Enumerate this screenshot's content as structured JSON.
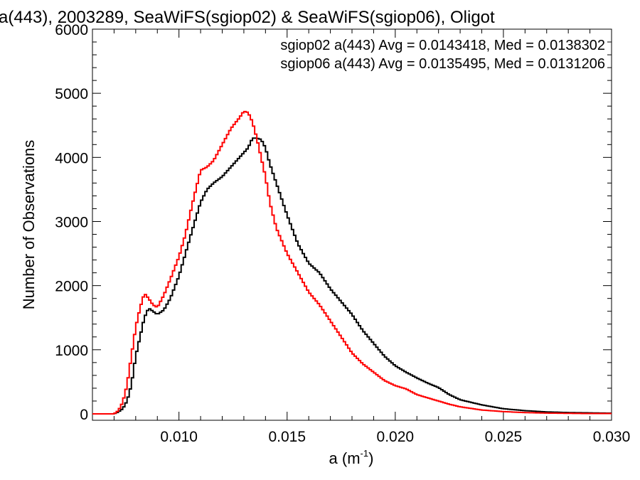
{
  "chart_data": {
    "type": "line",
    "title": "a(443), 2003289, SeaWiFS(sgiop02) & SeaWiFS(sgiop06), Oligot",
    "xlabel": "a (m",
    "xlabel_sup": "-1",
    "xlabel_close": ")",
    "ylabel": "Number of Observations",
    "xlim": [
      0.006,
      0.03
    ],
    "ylim": [
      -100,
      6000
    ],
    "x_ticks": [
      0.01,
      0.015,
      0.02,
      0.025,
      0.03
    ],
    "x_tick_labels": [
      "0.010",
      "0.015",
      "0.020",
      "0.025",
      "0.030"
    ],
    "y_ticks": [
      0,
      1000,
      2000,
      3000,
      4000,
      5000,
      6000
    ],
    "y_tick_labels": [
      "0",
      "1000",
      "2000",
      "3000",
      "4000",
      "5000",
      "6000"
    ],
    "grid": false,
    "legend_position": "top-right",
    "annotations": [
      {
        "text": "sgiop02 a(443) Avg = 0.0143418, Med = 0.0138302",
        "color": "#000000"
      },
      {
        "text": "sgiop06 a(443) Avg = 0.0135495, Med = 0.0131206",
        "color": "#ff0000"
      }
    ],
    "series": [
      {
        "color": "#000000",
        "x": [
          0.006,
          0.007,
          0.0072,
          0.0074,
          0.0076,
          0.0078,
          0.008,
          0.0082,
          0.0084,
          0.0086,
          0.0088,
          0.009,
          0.0093,
          0.0096,
          0.01,
          0.0103,
          0.0106,
          0.011,
          0.0113,
          0.0116,
          0.012,
          0.0124,
          0.0128,
          0.0132,
          0.0134,
          0.0136,
          0.0138,
          0.014,
          0.0142,
          0.0145,
          0.015,
          0.0155,
          0.016,
          0.0165,
          0.017,
          0.0175,
          0.018,
          0.0185,
          0.019,
          0.0195,
          0.02,
          0.0205,
          0.021,
          0.0215,
          0.022,
          0.0225,
          0.023,
          0.024,
          0.025,
          0.026,
          0.027,
          0.028,
          0.029,
          0.03
        ],
        "values": [
          0,
          0,
          30,
          80,
          200,
          450,
          900,
          1200,
          1500,
          1650,
          1600,
          1550,
          1620,
          1800,
          2150,
          2500,
          2850,
          3300,
          3500,
          3600,
          3700,
          3850,
          4000,
          4150,
          4300,
          4300,
          4280,
          4150,
          3900,
          3600,
          3100,
          2650,
          2350,
          2200,
          1950,
          1750,
          1550,
          1300,
          1100,
          900,
          750,
          650,
          560,
          480,
          410,
          300,
          220,
          140,
          80,
          50,
          30,
          20,
          15,
          10
        ]
      },
      {
        "color": "#ff0000",
        "x": [
          0.006,
          0.007,
          0.0072,
          0.0074,
          0.0076,
          0.0078,
          0.008,
          0.0082,
          0.0084,
          0.0086,
          0.0088,
          0.009,
          0.0093,
          0.0096,
          0.01,
          0.0103,
          0.0106,
          0.011,
          0.0113,
          0.0116,
          0.012,
          0.0124,
          0.0128,
          0.013,
          0.0132,
          0.0134,
          0.0136,
          0.0138,
          0.014,
          0.0142,
          0.0145,
          0.015,
          0.0155,
          0.016,
          0.0165,
          0.017,
          0.0175,
          0.018,
          0.0185,
          0.019,
          0.0195,
          0.02,
          0.0205,
          0.021,
          0.0215,
          0.022,
          0.0225,
          0.023,
          0.024,
          0.025,
          0.026,
          0.027,
          0.028,
          0.029,
          0.03
        ],
        "values": [
          0,
          0,
          50,
          180,
          450,
          900,
          1350,
          1650,
          1880,
          1800,
          1700,
          1660,
          1850,
          2100,
          2450,
          2800,
          3250,
          3800,
          3850,
          3950,
          4200,
          4450,
          4620,
          4720,
          4700,
          4550,
          4300,
          4000,
          3700,
          3300,
          2900,
          2500,
          2200,
          1900,
          1700,
          1450,
          1200,
          950,
          780,
          650,
          520,
          440,
          390,
          300,
          250,
          200,
          150,
          110,
          60,
          35,
          20,
          12,
          8,
          5,
          5
        ]
      }
    ]
  }
}
